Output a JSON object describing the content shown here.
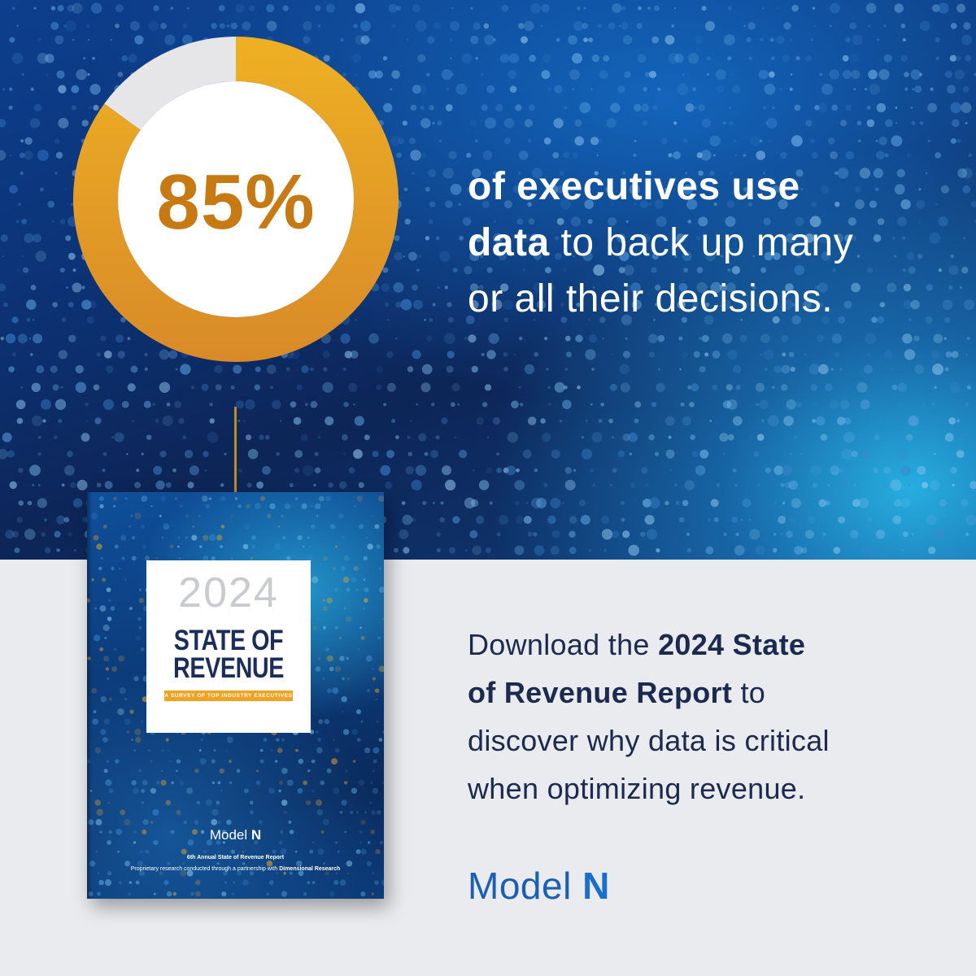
{
  "stat": {
    "percent_label": "85%",
    "percent_value": 85,
    "line1_bold": "of executives use",
    "line2_bold": "data",
    "line2_rest": " to back up many",
    "line3": "or all their decisions."
  },
  "colors": {
    "donut_fill": "#e8a92a",
    "donut_remainder": "#e6e6e8",
    "percent_text": "#c77a14",
    "cta_text": "#1b2a4e",
    "brand_blue": "#1c5fb2"
  },
  "report_cover": {
    "year": "2024",
    "title_line1": "STATE OF",
    "title_line2": "REVENUE",
    "subtitle": "A SURVEY OF TOP INDUSTRY EXECUTIVES",
    "logo_text": "Model",
    "logo_letter": "N",
    "edition": "6th Annual State of Revenue Report",
    "credit_prefix": "Proprietary research conducted through a partnership with",
    "credit_partner": "Dimensional Research"
  },
  "cta": {
    "prefix": "Download the ",
    "bold1": "2024 State",
    "bold2": "of Revenue Report",
    "rest_after_bold": " to",
    "line3": "discover why data is critical",
    "line4": "when optimizing revenue."
  },
  "brand": {
    "name": "Model",
    "letter": "N"
  }
}
